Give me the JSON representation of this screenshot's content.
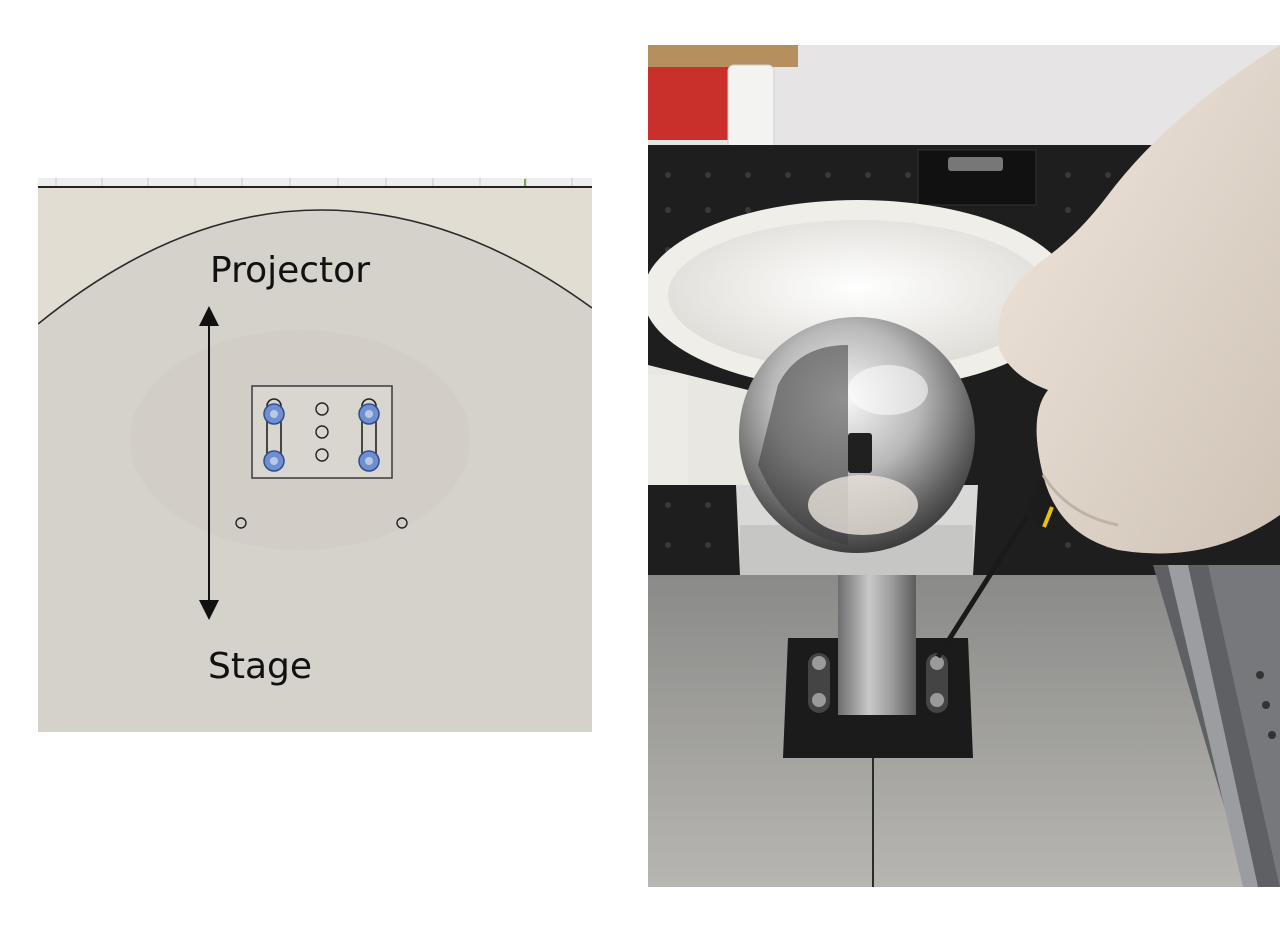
{
  "diagram": {
    "top_label": "Projector",
    "bottom_label": "Stage"
  },
  "colors": {
    "cad_background": "#d5d1cb",
    "cad_top_band": "#e1ddd2",
    "screw_blue": "#6f8fce",
    "table_black": "#1e1e1f",
    "bowl_white": "#f1f0ec",
    "glove": "#e8ddd3"
  },
  "icons": [
    "double-arrow-icon",
    "mount-plate-icon",
    "screw-slot-icon",
    "mirror-sphere-icon",
    "screwdriver-icon"
  ]
}
